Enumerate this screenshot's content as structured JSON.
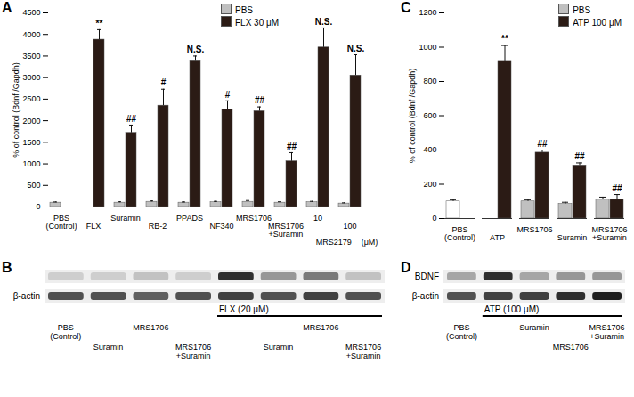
{
  "chart_data": [
    {
      "panel": "A",
      "type": "bar",
      "ylabel": "% of control (Bdnf /Gapdh)",
      "ylim": [
        0,
        4500
      ],
      "yticks": [
        0,
        500,
        1000,
        1500,
        2000,
        2500,
        3000,
        3500,
        4000,
        4500
      ],
      "grid": false,
      "legend": "top",
      "categories": [
        "PBS (Control)",
        "FLX",
        "Suramin",
        "RB-2",
        "PPADS",
        "NF340",
        "MRS1706",
        "MRS1706 +Suramin",
        "10",
        "100"
      ],
      "annotations": [
        "MRS2179",
        "(μM)"
      ],
      "series": [
        {
          "name": "PBS",
          "color": "#c0c0c0",
          "values": [
            100,
            null,
            100,
            120,
            100,
            110,
            120,
            100,
            110,
            80
          ],
          "errors": [
            15,
            null,
            20,
            20,
            15,
            20,
            30,
            20,
            20,
            15
          ]
        },
        {
          "name": "FLX 30 μM",
          "color": "#2b1b15",
          "values": [
            null,
            3880,
            1720,
            2350,
            3400,
            2260,
            2220,
            1060,
            3700,
            3050
          ],
          "errors": [
            null,
            230,
            180,
            380,
            100,
            200,
            100,
            200,
            450,
            480
          ],
          "significance": [
            null,
            "**",
            "##",
            "#",
            "N.S.",
            "#",
            "##",
            "##",
            "N.S.",
            "N.S."
          ]
        }
      ]
    },
    {
      "panel": "C",
      "type": "bar",
      "ylabel": "% of control (Bdnf /Gapdh)",
      "ylim": [
        0,
        1200
      ],
      "yticks": [
        0,
        200,
        400,
        600,
        800,
        1000,
        1200
      ],
      "grid": false,
      "legend": "top-right",
      "categories": [
        "PBS (Control)",
        "ATP",
        "MRS1706",
        "Suramin",
        "MRS1706 +Suramin"
      ],
      "series": [
        {
          "name": "PBS",
          "color": "#c0c0c0",
          "colors": [
            "#ffffff",
            null,
            "#c0c0c0",
            "#c0c0c0",
            "#c0c0c0"
          ],
          "values": [
            100,
            null,
            100,
            85,
            110
          ],
          "errors": [
            10,
            null,
            10,
            10,
            15
          ]
        },
        {
          "name": "ATP 100 μM",
          "color": "#2b1b15",
          "values": [
            null,
            920,
            385,
            310,
            110
          ],
          "errors": [
            null,
            90,
            15,
            15,
            30
          ],
          "significance": [
            null,
            "**",
            "##",
            "##",
            "##"
          ]
        }
      ]
    }
  ],
  "blots": [
    {
      "panel": "B",
      "treatment": "FLX (20 μM)",
      "rows": [
        {
          "label": null,
          "intensity": [
            0.3,
            0.3,
            0.35,
            0.3,
            0.85,
            0.5,
            0.6,
            0.35
          ]
        },
        {
          "label": "β-actin",
          "intensity": [
            0.75,
            0.75,
            0.7,
            0.75,
            0.8,
            0.75,
            0.8,
            0.75
          ]
        }
      ],
      "lanes": [
        {
          "label": "PBS (Control)"
        },
        {
          "label": "Suramin"
        },
        {
          "label": "MRS1706"
        },
        {
          "label": "MRS1706 +Suramin"
        },
        {
          "label": null,
          "treated": true
        },
        {
          "label": "Suramin",
          "treated": true
        },
        {
          "label": "MRS1706",
          "treated": true
        },
        {
          "label": "MRS1706 +Suramin",
          "treated": true
        }
      ]
    },
    {
      "panel": "D",
      "treatment": "ATP (100 μM)",
      "rows": [
        {
          "label": "BDNF",
          "intensity": [
            0.45,
            0.85,
            0.45,
            0.5,
            0.5
          ]
        },
        {
          "label": "β-actin",
          "intensity": [
            0.75,
            0.8,
            0.8,
            0.85,
            0.9
          ]
        }
      ],
      "lanes": [
        {
          "label": "PBS (Control)"
        },
        {
          "label": null,
          "treated": true
        },
        {
          "label": "Suramin",
          "treated": true
        },
        {
          "label": "MRS1706",
          "treated": true
        },
        {
          "label": "MRS1706 +Suramin",
          "treated": true
        }
      ]
    }
  ]
}
